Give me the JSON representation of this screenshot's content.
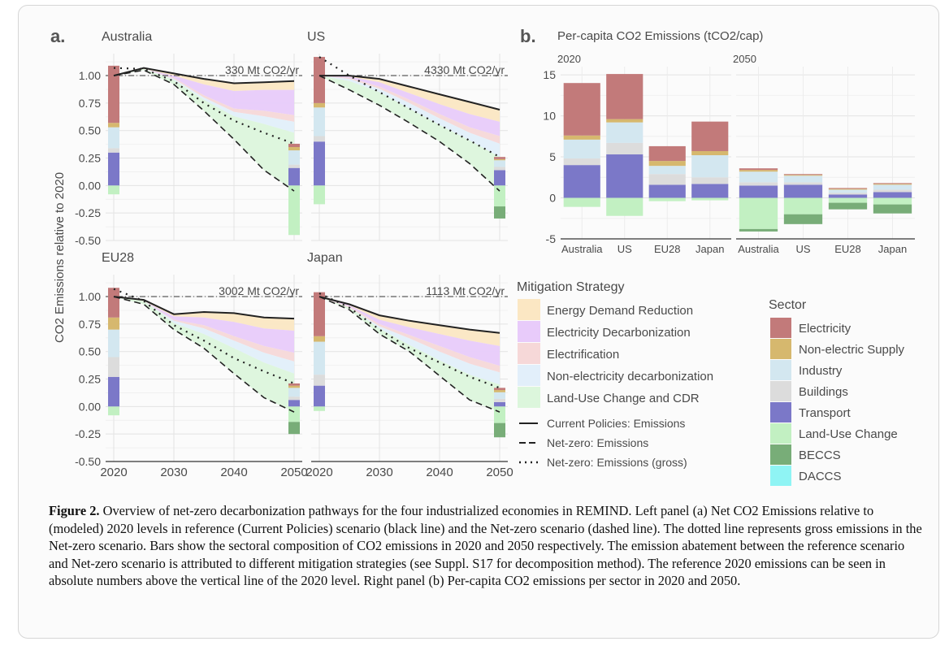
{
  "figure": {
    "panel_a_letter": "a.",
    "panel_b_letter": "b.",
    "caption_label": "Figure 2.",
    "caption_text": " Overview of net-zero decarbonization pathways for the four industrialized economies in REMIND. Left panel (a) Net CO2 Emissions relative to (modeled) 2020 levels in reference (Current Policies) scenario (black line) and the Net-zero scenario (dashed line). The dotted line represents gross emissions in the Net-zero scenario. Bars show the sectoral composition of CO2 emissions in 2020 and 2050 respectively. The emission abatement between the reference scenario and Net-zero scenario is attributed to different mitigation strategies (see Suppl. S17 for decomposition method). The reference 2020 emissions can be seen in absolute numbers above the vertical line of the 2020 level. Right panel (b) Per-capita CO2 emissions per sector in 2020 and 2050."
  },
  "colors": {
    "Electricity": "#c27a7a",
    "Non-electric Supply": "#d6b86e",
    "Industry": "#d3e7f0",
    "Buildings": "#dcdcdc",
    "Transport": "#7b78c8",
    "Land-Use Change": "#c2f0c2",
    "BECCS": "#78ad78",
    "DACCS": "#8ff4f4",
    "Energy Demand Reduction": "#fbe7c3",
    "Electricity Decarbonization": "#e8cbfa",
    "Electrification": "#f6d8d8",
    "Non-electricity decarbonization": "#e2effa",
    "Land-Use Change and CDR": "#dcf6dc"
  },
  "chart_data": [
    {
      "type": "area",
      "panel": "a",
      "ylabel": "CO2 Emissions relative to 2020",
      "ylim": [
        -0.5,
        1.2
      ],
      "yticks": [
        "1.00",
        "0.75",
        "0.50",
        "0.25",
        "0.00",
        "-0.25",
        "-0.50"
      ],
      "ytick_values": [
        1.0,
        0.75,
        0.5,
        0.25,
        0.0,
        -0.25,
        -0.5
      ],
      "xticks": [
        "2020",
        "2030",
        "2040",
        "2050"
      ],
      "xtick_values": [
        2020,
        2030,
        2040,
        2050
      ],
      "xlim": [
        2020,
        2050
      ],
      "grid": true,
      "years": [
        2020,
        2025,
        2030,
        2035,
        2040,
        2045,
        2050
      ],
      "facets": [
        {
          "name": "Australia",
          "annotation": "330 Mt CO2/yr",
          "current_policies": [
            1.0,
            1.07,
            1.02,
            0.97,
            0.93,
            0.94,
            0.95
          ],
          "net_zero": [
            1.0,
            1.05,
            0.92,
            0.68,
            0.42,
            0.14,
            -0.05
          ],
          "net_zero_gross": [
            1.07,
            1.06,
            0.95,
            0.75,
            0.59,
            0.48,
            0.38
          ],
          "abatement_levels": [
            [
              1.0,
              1.07,
              1.02,
              0.97,
              0.93,
              0.94,
              0.95
            ],
            [
              1.0,
              1.06,
              1.0,
              0.92,
              0.86,
              0.87,
              0.87
            ],
            [
              1.0,
              1.06,
              0.98,
              0.82,
              0.7,
              0.68,
              0.64
            ],
            [
              1.0,
              1.06,
              0.97,
              0.8,
              0.67,
              0.63,
              0.58
            ],
            [
              1.0,
              1.06,
              0.96,
              0.78,
              0.63,
              0.56,
              0.48
            ],
            [
              1.0,
              1.05,
              0.92,
              0.68,
              0.42,
              0.14,
              -0.05
            ]
          ],
          "bars_2020": {
            "Transport": 0.3,
            "Buildings": 0.04,
            "Industry": 0.19,
            "Non-electric Supply": 0.04,
            "Electricity": 0.52,
            "Land-Use Change": -0.08
          },
          "bars_2050": {
            "Transport": 0.16,
            "Buildings": 0.03,
            "Industry": 0.13,
            "Non-electric Supply": 0.03,
            "Electricity": 0.03,
            "Land-Use Change": -0.45
          }
        },
        {
          "name": "US",
          "annotation": "4330 Mt CO2/yr",
          "current_policies": [
            1.0,
            1.0,
            0.97,
            0.9,
            0.83,
            0.76,
            0.69
          ],
          "net_zero": [
            1.0,
            0.87,
            0.73,
            0.57,
            0.4,
            0.2,
            -0.05
          ],
          "net_zero_gross": [
            1.17,
            1.0,
            0.85,
            0.7,
            0.55,
            0.41,
            0.26
          ],
          "abatement_levels": [
            [
              1.0,
              1.0,
              0.97,
              0.9,
              0.83,
              0.76,
              0.69
            ],
            [
              1.0,
              0.99,
              0.94,
              0.84,
              0.74,
              0.65,
              0.58
            ],
            [
              1.0,
              0.98,
              0.9,
              0.78,
              0.65,
              0.53,
              0.45
            ],
            [
              1.0,
              0.97,
              0.88,
              0.75,
              0.61,
              0.48,
              0.38
            ],
            [
              1.0,
              0.95,
              0.85,
              0.7,
              0.55,
              0.41,
              0.26
            ],
            [
              1.0,
              0.87,
              0.73,
              0.57,
              0.4,
              0.2,
              -0.05
            ]
          ],
          "bars_2020": {
            "Transport": 0.4,
            "Buildings": 0.05,
            "Industry": 0.26,
            "Non-electric Supply": 0.04,
            "Electricity": 0.42,
            "Land-Use Change": -0.17
          },
          "bars_2050": {
            "Transport": 0.14,
            "Buildings": 0.03,
            "Industry": 0.06,
            "Non-electric Supply": 0.01,
            "Electricity": 0.02,
            "Land-Use Change": -0.19,
            "BECCS": -0.11
          }
        },
        {
          "name": "EU28",
          "annotation": "3002 Mt CO2/yr",
          "current_policies": [
            1.0,
            0.97,
            0.84,
            0.86,
            0.85,
            0.81,
            0.8
          ],
          "net_zero": [
            1.0,
            0.93,
            0.7,
            0.53,
            0.3,
            0.08,
            -0.05
          ],
          "net_zero_gross": [
            1.07,
            0.96,
            0.74,
            0.6,
            0.44,
            0.32,
            0.21
          ],
          "abatement_levels": [
            [
              1.0,
              0.97,
              0.84,
              0.86,
              0.85,
              0.81,
              0.8
            ],
            [
              1.0,
              0.96,
              0.82,
              0.81,
              0.77,
              0.71,
              0.69
            ],
            [
              1.0,
              0.96,
              0.79,
              0.74,
              0.64,
              0.55,
              0.49
            ],
            [
              1.0,
              0.96,
              0.78,
              0.71,
              0.6,
              0.49,
              0.41
            ],
            [
              1.0,
              0.96,
              0.76,
              0.66,
              0.53,
              0.4,
              0.3
            ],
            [
              1.0,
              0.93,
              0.7,
              0.53,
              0.3,
              0.08,
              -0.05
            ]
          ],
          "bars_2020": {
            "Transport": 0.27,
            "Buildings": 0.18,
            "Industry": 0.25,
            "Non-electric Supply": 0.11,
            "Electricity": 0.27,
            "Land-Use Change": -0.08
          },
          "bars_2050": {
            "Transport": 0.06,
            "Buildings": 0.03,
            "Industry": 0.08,
            "Non-electric Supply": 0.02,
            "Electricity": 0.02,
            "Land-Use Change": -0.14,
            "BECCS": -0.11
          }
        },
        {
          "name": "Japan",
          "annotation": "1113 Mt CO2/yr",
          "current_policies": [
            1.0,
            0.93,
            0.83,
            0.78,
            0.74,
            0.7,
            0.67
          ],
          "net_zero": [
            1.0,
            0.88,
            0.66,
            0.5,
            0.28,
            0.06,
            -0.05
          ],
          "net_zero_gross": [
            1.03,
            0.9,
            0.7,
            0.53,
            0.4,
            0.27,
            0.17
          ],
          "abatement_levels": [
            [
              1.0,
              0.93,
              0.83,
              0.78,
              0.74,
              0.7,
              0.67
            ],
            [
              1.0,
              0.92,
              0.79,
              0.72,
              0.66,
              0.6,
              0.55
            ],
            [
              1.0,
              0.91,
              0.75,
              0.65,
              0.55,
              0.45,
              0.37
            ],
            [
              1.0,
              0.9,
              0.73,
              0.62,
              0.5,
              0.39,
              0.31
            ],
            [
              1.0,
              0.9,
              0.71,
              0.56,
              0.42,
              0.29,
              0.2
            ],
            [
              1.0,
              0.88,
              0.66,
              0.5,
              0.28,
              0.06,
              -0.05
            ]
          ],
          "bars_2020": {
            "Transport": 0.19,
            "Buildings": 0.1,
            "Industry": 0.3,
            "Non-electric Supply": 0.05,
            "Electricity": 0.4,
            "Land-Use Change": -0.04
          },
          "bars_2050": {
            "Transport": 0.04,
            "Buildings": 0.03,
            "Industry": 0.06,
            "Non-electric Supply": 0.02,
            "Electricity": 0.02,
            "Land-Use Change": -0.15,
            "BECCS": -0.13
          }
        }
      ],
      "legend_mitigation": {
        "title": "Mitigation Strategy",
        "items": [
          "Energy Demand Reduction",
          "Electricity Decarbonization",
          "Electrification",
          "Non-electricity decarbonization",
          "Land-Use Change and CDR"
        ],
        "lines": [
          {
            "label": "Current Policies: Emissions",
            "style": "solid"
          },
          {
            "label": "Net-zero: Emissions",
            "style": "dashed"
          },
          {
            "label": "Net-zero: Emissions (gross)",
            "style": "dotted"
          }
        ]
      }
    },
    {
      "type": "bar",
      "panel": "b",
      "title": "Per-capita CO2 Emissions (tCO2/cap)",
      "ylim": [
        -5,
        16
      ],
      "yticks": [
        "15",
        "10",
        "5",
        "0",
        "-5"
      ],
      "ytick_values": [
        15,
        10,
        5,
        0,
        -5
      ],
      "grid": true,
      "categories": [
        "Australia",
        "US",
        "EU28",
        "Japan"
      ],
      "facets": [
        {
          "name": "2020",
          "values": [
            {
              "Transport": 4.0,
              "Buildings": 0.8,
              "Industry": 2.3,
              "Non-electric Supply": 0.5,
              "Electricity": 6.4,
              "Land-Use Change": -1.1
            },
            {
              "Transport": 5.3,
              "Buildings": 1.4,
              "Industry": 2.5,
              "Non-electric Supply": 0.4,
              "Electricity": 5.5,
              "Land-Use Change": -2.2
            },
            {
              "Transport": 1.6,
              "Buildings": 1.3,
              "Industry": 1.0,
              "Non-electric Supply": 0.6,
              "Electricity": 1.8,
              "Land-Use Change": -0.4
            },
            {
              "Transport": 1.7,
              "Buildings": 0.8,
              "Industry": 2.7,
              "Non-electric Supply": 0.5,
              "Electricity": 3.6,
              "Land-Use Change": -0.3
            }
          ]
        },
        {
          "name": "2050",
          "values": [
            {
              "Transport": 1.5,
              "Buildings": 0.4,
              "Industry": 1.3,
              "Non-electric Supply": 0.2,
              "Electricity": 0.2,
              "Land-Use Change": -3.8,
              "BECCS": -0.3
            },
            {
              "Transport": 1.6,
              "Buildings": 0.3,
              "Industry": 0.8,
              "Non-electric Supply": 0.1,
              "Electricity": 0.1,
              "Land-Use Change": -2.0,
              "BECCS": -1.2
            },
            {
              "Transport": 0.4,
              "Buildings": 0.2,
              "Industry": 0.4,
              "Non-electric Supply": 0.1,
              "Electricity": 0.1,
              "Land-Use Change": -0.6,
              "BECCS": -0.8
            },
            {
              "Transport": 0.7,
              "Buildings": 0.3,
              "Industry": 0.6,
              "Non-electric Supply": 0.1,
              "Electricity": 0.1,
              "Land-Use Change": -0.8,
              "BECCS": -1.1
            }
          ]
        }
      ],
      "legend_sector": {
        "title": "Sector",
        "items": [
          "Electricity",
          "Non-electric Supply",
          "Industry",
          "Buildings",
          "Transport",
          "Land-Use Change",
          "BECCS",
          "DACCS"
        ]
      }
    }
  ]
}
